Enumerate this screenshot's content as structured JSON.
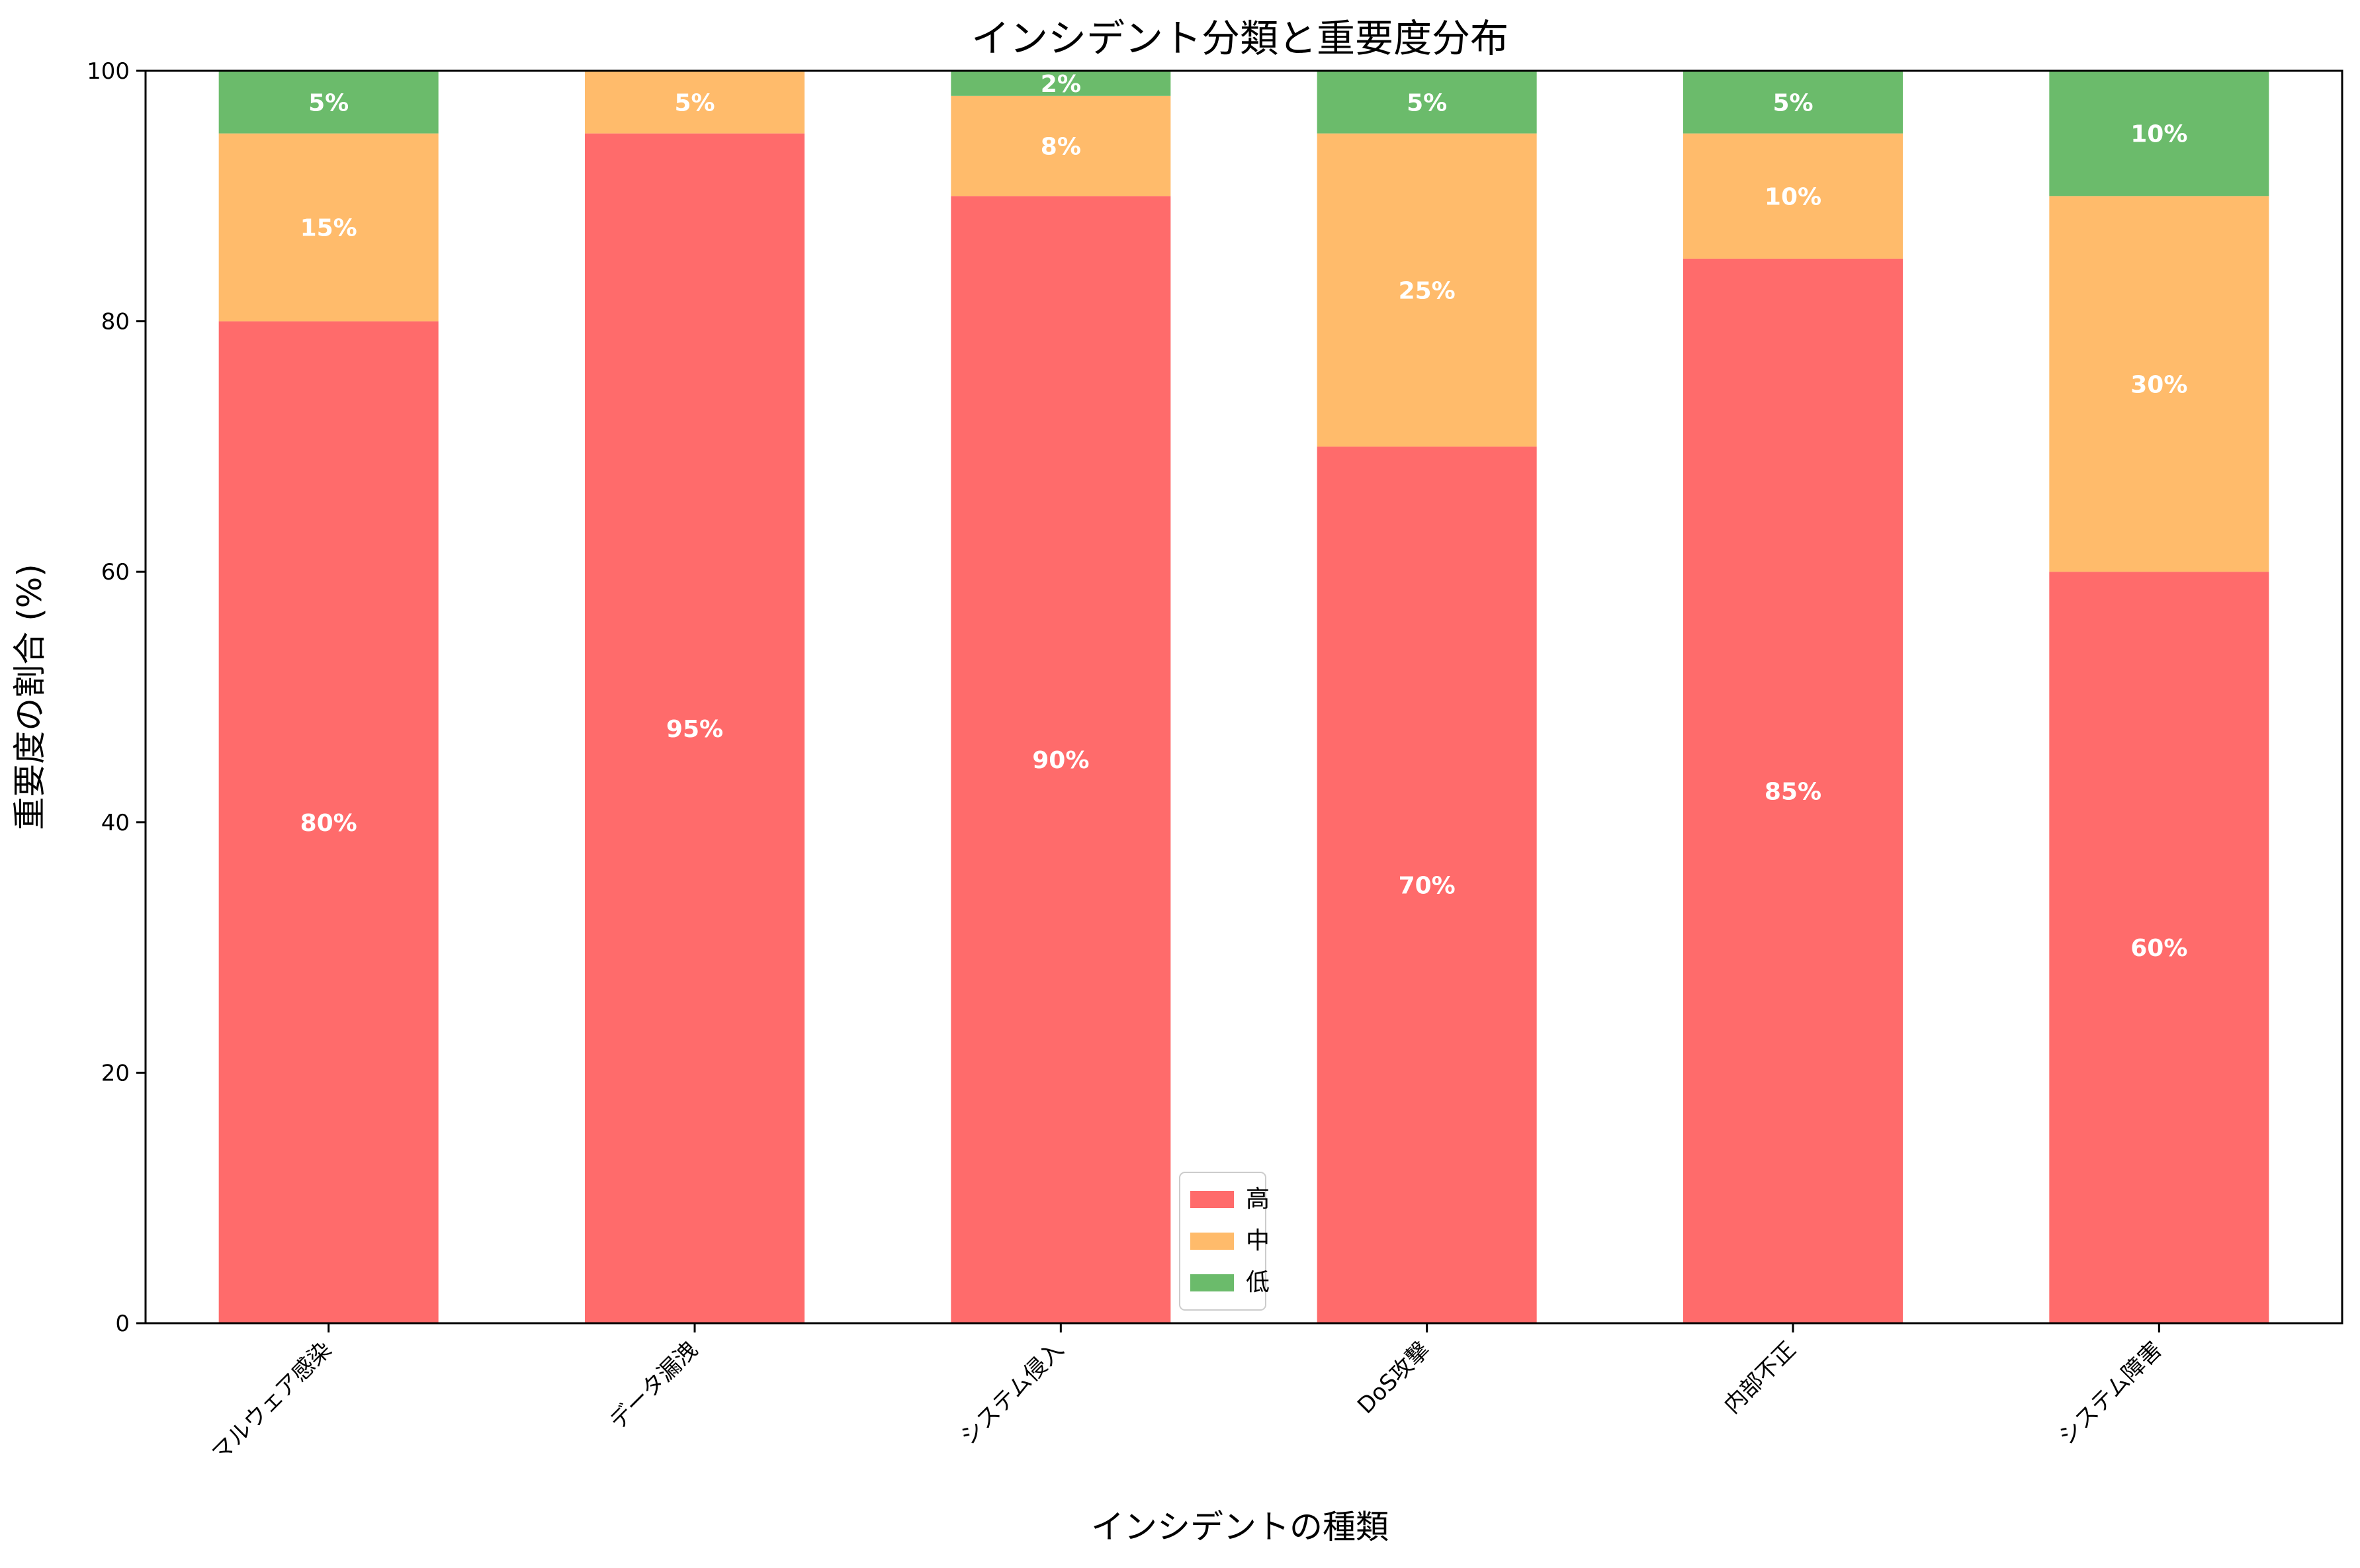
{
  "chart_data": {
    "type": "bar",
    "stacked": true,
    "title": "インシデント分類と重要度分布",
    "xlabel": "インシデントの種類",
    "ylabel": "重要度の割合 (%)",
    "ylim": [
      0,
      100
    ],
    "yticks": [
      0,
      20,
      40,
      60,
      80,
      100
    ],
    "grid": false,
    "legend_position": "bottom-center",
    "categories": [
      "マルウェア感染",
      "データ漏洩",
      "システム侵入",
      "DoS攻撃",
      "内部不正",
      "システム障害"
    ],
    "series": [
      {
        "name": "高",
        "color": "#ff6b6b",
        "values": [
          80,
          95,
          90,
          70,
          85,
          60
        ]
      },
      {
        "name": "中",
        "color": "#ffbb6b",
        "values": [
          15,
          5,
          8,
          25,
          10,
          30
        ]
      },
      {
        "name": "低",
        "color": "#6bbb6b",
        "values": [
          5,
          0,
          2,
          5,
          5,
          10
        ]
      }
    ],
    "value_suffix": "%"
  }
}
